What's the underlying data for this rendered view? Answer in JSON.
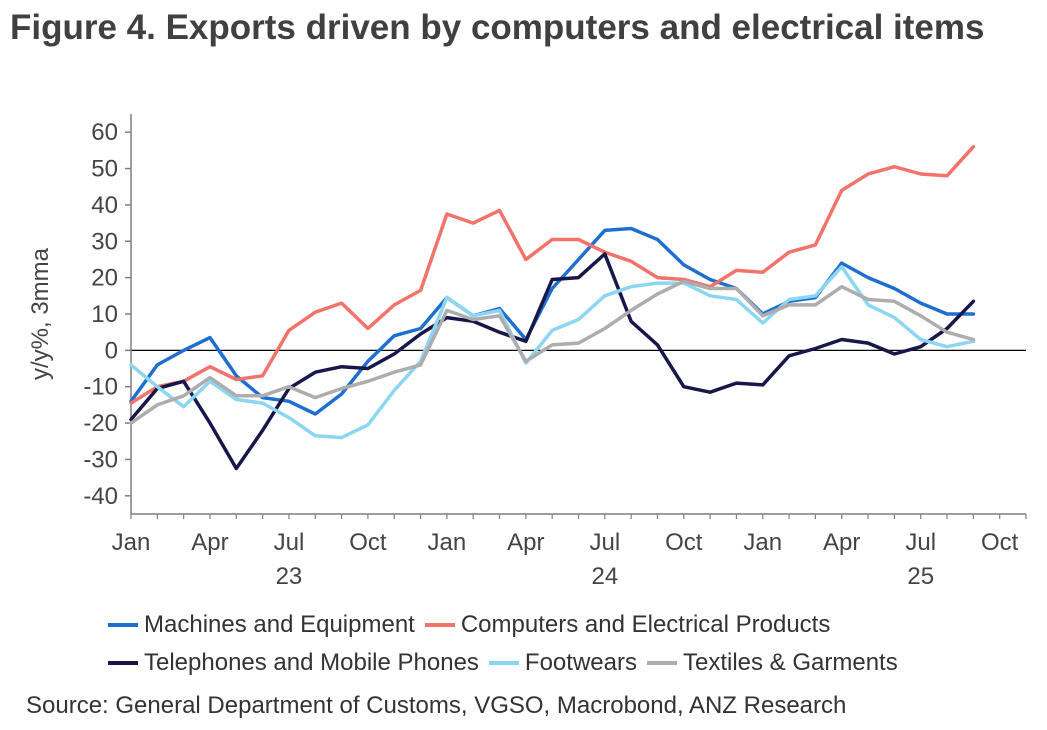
{
  "title": "Figure 4. Exports driven by computers and electrical items",
  "source": "Source: General Department of Customs, VGSO, Macrobond, ANZ Research",
  "chart_data": {
    "type": "line",
    "ylabel": "y/y%, 3mma",
    "ylim": [
      -45,
      65
    ],
    "yticks": [
      60,
      50,
      40,
      30,
      20,
      10,
      0,
      -10,
      -20,
      -30,
      -40
    ],
    "xlim": [
      0,
      34
    ],
    "month_ticks": [
      {
        "x": 0,
        "label": "Jan"
      },
      {
        "x": 3,
        "label": "Apr"
      },
      {
        "x": 6,
        "label": "Jul"
      },
      {
        "x": 9,
        "label": "Oct"
      },
      {
        "x": 12,
        "label": "Jan"
      },
      {
        "x": 15,
        "label": "Apr"
      },
      {
        "x": 18,
        "label": "Jul"
      },
      {
        "x": 21,
        "label": "Oct"
      },
      {
        "x": 24,
        "label": "Jan"
      },
      {
        "x": 27,
        "label": "Apr"
      },
      {
        "x": 30,
        "label": "Jul"
      },
      {
        "x": 33,
        "label": "Oct"
      }
    ],
    "year_ticks": [
      {
        "x": 6,
        "label": "23"
      },
      {
        "x": 18,
        "label": "24"
      },
      {
        "x": 30,
        "label": "25"
      }
    ],
    "x": [
      0,
      1,
      2,
      3,
      4,
      5,
      6,
      7,
      8,
      9,
      10,
      11,
      12,
      13,
      14,
      15,
      16,
      17,
      18,
      19,
      20,
      21,
      22,
      23,
      24,
      25,
      26,
      27,
      28,
      29,
      30,
      31,
      32
    ],
    "series": [
      {
        "name": "Machines and Equipment",
        "color": "#1F6FD1",
        "values": [
          -14,
          -4,
          0,
          3.5,
          -7,
          -13,
          -14,
          -17.5,
          -12,
          -3,
          4,
          6,
          14.5,
          9.5,
          11.5,
          3,
          17,
          25,
          33,
          33.5,
          30.5,
          23.5,
          19.5,
          17,
          10,
          13.5,
          14.5,
          24,
          20,
          17,
          13,
          10,
          10
        ]
      },
      {
        "name": "Computers and Electrical Products",
        "color": "#F1736A",
        "values": [
          -14.5,
          -10,
          -8.5,
          -4.5,
          -8,
          -7,
          5.5,
          10.5,
          13,
          6,
          12.5,
          16.5,
          37.5,
          35,
          38.5,
          25,
          30.5,
          30.5,
          27,
          24.5,
          20,
          19.5,
          17.5,
          22,
          21.5,
          27,
          29,
          44,
          48.5,
          50.5,
          48.5,
          48,
          56
        ]
      },
      {
        "name": "Telephones and Mobile Phones",
        "color": "#17174A",
        "values": [
          -19,
          -10.5,
          -8.5,
          -20,
          -32.5,
          -22,
          -10.5,
          -6,
          -4.5,
          -5,
          -1,
          4.5,
          9,
          8,
          5,
          2.5,
          19.5,
          20,
          26.5,
          8,
          1.5,
          -10,
          -11.5,
          -9,
          -9.5,
          -1.5,
          0.5,
          3,
          2,
          -1,
          1,
          6,
          13.5
        ]
      },
      {
        "name": "Footwears",
        "color": "#8DD6F2",
        "values": [
          -4,
          -10,
          -15.5,
          -8.5,
          -13.5,
          -14.5,
          -18.5,
          -23.5,
          -24,
          -20.5,
          -11,
          -3,
          14.5,
          9.5,
          11,
          -3.5,
          5.5,
          8.5,
          15,
          17.5,
          18.5,
          18.5,
          15,
          14,
          7.5,
          14,
          15,
          23,
          12.5,
          9,
          3,
          1,
          2.5
        ]
      },
      {
        "name": "Textiles & Garments",
        "color": "#ADADAD",
        "values": [
          -20,
          -15,
          -12.5,
          -7.5,
          -12.5,
          -12.5,
          -10,
          -13,
          -10.5,
          -8.5,
          -6,
          -4,
          11,
          8.5,
          9.5,
          -3,
          1.5,
          2,
          6,
          11,
          15.5,
          19,
          17,
          17,
          9.5,
          12.5,
          12.5,
          17.5,
          14,
          13.5,
          9.5,
          5,
          3
        ]
      }
    ]
  },
  "legend": {
    "row1": [
      {
        "label": "Machines and Equipment",
        "color": "#1F6FD1"
      },
      {
        "label": "Computers and Electrical Products",
        "color": "#F1736A"
      }
    ],
    "row2": [
      {
        "label": "Telephones and Mobile Phones",
        "color": "#17174A"
      },
      {
        "label": "Footwears",
        "color": "#8DD6F2"
      },
      {
        "label": "Textiles & Garments",
        "color": "#ADADAD"
      }
    ]
  }
}
